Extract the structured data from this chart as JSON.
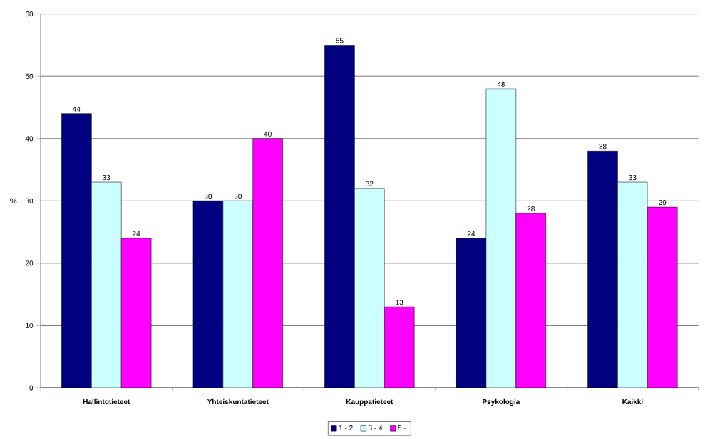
{
  "chart_data": {
    "type": "bar",
    "ylabel": "%",
    "categories": [
      "Hallintotieteet",
      "Yhteiskuntatieteet",
      "Kauppatieteet",
      "Psykologia",
      "Kaikki"
    ],
    "series": [
      {
        "name": "1 - 2",
        "color": "#000080",
        "values": [
          44,
          30,
          55,
          24,
          38
        ]
      },
      {
        "name": "3 - 4",
        "color": "#ccffff",
        "values": [
          33,
          30,
          32,
          48,
          33
        ]
      },
      {
        "name": "5 -",
        "color": "#ff00ff",
        "values": [
          24,
          40,
          13,
          28,
          29
        ]
      }
    ],
    "ylim": [
      0,
      60
    ],
    "yticks": [
      0,
      10,
      20,
      30,
      40,
      50,
      60
    ],
    "grid": "y",
    "legend": "bottom",
    "data_labels": true
  }
}
